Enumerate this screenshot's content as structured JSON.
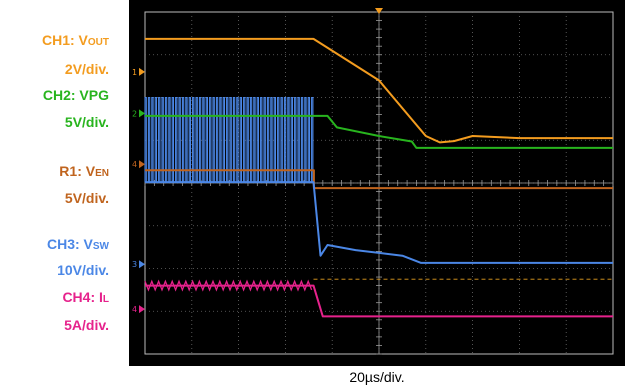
{
  "chart_data": {
    "type": "line",
    "title": "",
    "xlabel": "20µs/div.",
    "x_per_div_us": 20,
    "x_divisions": 10,
    "y_divisions": 8,
    "grid": true,
    "channels": [
      {
        "id": "ch1",
        "name_main": "CH1: V",
        "name_sub": "OUT",
        "scale": "2V/div.",
        "color": "#f39c1f",
        "points": [
          [
            0,
            -3.37
          ],
          [
            36,
            -3.37
          ],
          [
            50,
            -2.4
          ],
          [
            60,
            -1.1
          ],
          [
            63,
            -0.95
          ],
          [
            66,
            -0.98
          ],
          [
            70,
            -1.1
          ],
          [
            80,
            -1.05
          ],
          [
            90,
            -1.05
          ],
          [
            100,
            -1.05
          ]
        ]
      },
      {
        "id": "ch2",
        "name_main": "CH2: VPG",
        "name_sub": "",
        "scale": "5V/div.",
        "color": "#28b41e",
        "points": [
          [
            0,
            -1.57
          ],
          [
            39,
            -1.57
          ],
          [
            41,
            -1.3
          ],
          [
            50,
            -1.1
          ],
          [
            57,
            -0.97
          ],
          [
            58,
            -0.82
          ],
          [
            100,
            -0.82
          ]
        ]
      },
      {
        "id": "r1",
        "name_main": "R1: V",
        "name_sub": "EN",
        "scale": "5V/div.",
        "color": "#c0641e",
        "points": [
          [
            0,
            -0.3
          ],
          [
            36.1,
            -0.3
          ],
          [
            36.1,
            0.12
          ],
          [
            100,
            0.12
          ]
        ]
      },
      {
        "id": "ch3",
        "name_main": "CH3: V",
        "name_sub": "SW",
        "scale": "10V/div.",
        "color": "#4b87e6",
        "points": [
          [
            0,
            -0.02
          ],
          [
            36,
            -0.02
          ],
          [
            37.5,
            1.7
          ],
          [
            39,
            1.45
          ],
          [
            45,
            1.57
          ],
          [
            55,
            1.7
          ],
          [
            59,
            1.87
          ],
          [
            100,
            1.87
          ]
        ]
      },
      {
        "id": "ch4",
        "name_main": "CH4: I",
        "name_sub": "L",
        "scale": "5A/div.",
        "color": "#e6228c",
        "points": [
          [
            0,
            2.4
          ],
          [
            36,
            2.4
          ],
          [
            38,
            3.12
          ],
          [
            100,
            3.12
          ]
        ]
      }
    ],
    "markers": [
      "1",
      "2",
      "4",
      "3",
      "4"
    ]
  }
}
